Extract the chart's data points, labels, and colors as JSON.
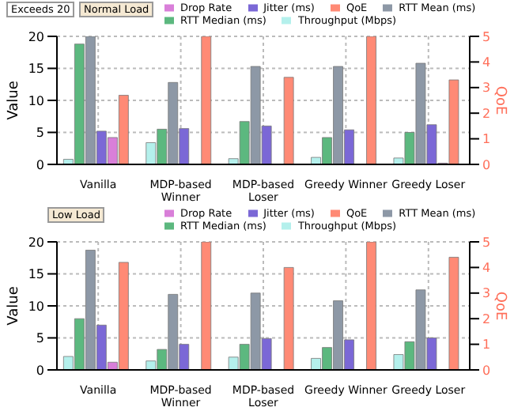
{
  "chart_data": [
    {
      "type": "bar",
      "categories": [
        "Vanilla",
        "MDP-based Winner",
        "MDP-based Loser",
        "Greedy Winner",
        "Greedy Loser"
      ],
      "ylabel": "Value",
      "y2label": "QoE",
      "ylim": [
        0,
        20
      ],
      "yticks": [
        0,
        5,
        10,
        15,
        20
      ],
      "y2lim": [
        0,
        5
      ],
      "y2ticks": [
        0,
        1,
        2,
        3,
        4,
        5
      ],
      "grid": true,
      "legend": "top",
      "annotations": [
        "Exceeds 20",
        "Normal Load"
      ],
      "series": [
        {
          "name": "QoE",
          "color": "#ff8a75",
          "axis": "y2",
          "values": [
            2.7,
            5,
            3.4,
            5,
            3.3
          ]
        },
        {
          "name": "Throughput (Mbps)",
          "color": "#b4f0ec",
          "values": [
            0.8,
            3.4,
            0.9,
            1.1,
            1.0
          ]
        },
        {
          "name": "RTT Median (ms)",
          "color": "#5cb87f",
          "values": [
            18.8,
            5.5,
            6.7,
            4.2,
            5.0
          ]
        },
        {
          "name": "RTT Mean (ms)",
          "color": "#8d98a6",
          "values": [
            20,
            12.8,
            15.3,
            15.3,
            15.8
          ]
        },
        {
          "name": "Jitter (ms)",
          "color": "#7b68d6",
          "values": [
            5.2,
            5.6,
            6.0,
            5.4,
            6.2
          ]
        },
        {
          "name": "Drop Rate",
          "color": "#d97fd9",
          "values": [
            4.2,
            null,
            null,
            null,
            0.2
          ]
        }
      ]
    },
    {
      "type": "bar",
      "categories": [
        "Vanilla",
        "MDP-based Winner",
        "MDP-based Loser",
        "Greedy Winner",
        "Greedy Loser"
      ],
      "ylabel": "Value",
      "y2label": "QoE",
      "ylim": [
        0,
        20
      ],
      "yticks": [
        0,
        5,
        10,
        15,
        20
      ],
      "y2lim": [
        0,
        5
      ],
      "y2ticks": [
        0,
        1,
        2,
        3,
        4,
        5
      ],
      "grid": true,
      "legend": "top",
      "annotations": [
        "Low Load"
      ],
      "series": [
        {
          "name": "QoE",
          "color": "#ff8a75",
          "axis": "y2",
          "values": [
            4.2,
            5,
            4.0,
            5,
            4.4
          ]
        },
        {
          "name": "Throughput (Mbps)",
          "color": "#b4f0ec",
          "values": [
            2.1,
            1.4,
            2.0,
            1.8,
            2.4
          ]
        },
        {
          "name": "RTT Median (ms)",
          "color": "#5cb87f",
          "values": [
            8.0,
            3.2,
            4.0,
            3.5,
            4.4
          ]
        },
        {
          "name": "RTT Mean (ms)",
          "color": "#8d98a6",
          "values": [
            18.7,
            11.8,
            12.0,
            10.8,
            12.5
          ]
        },
        {
          "name": "Jitter (ms)",
          "color": "#7b68d6",
          "values": [
            7.0,
            4.0,
            4.9,
            4.7,
            5.0
          ]
        },
        {
          "name": "Drop Rate",
          "color": "#d97fd9",
          "values": [
            1.2,
            null,
            null,
            null,
            null
          ]
        }
      ]
    }
  ]
}
